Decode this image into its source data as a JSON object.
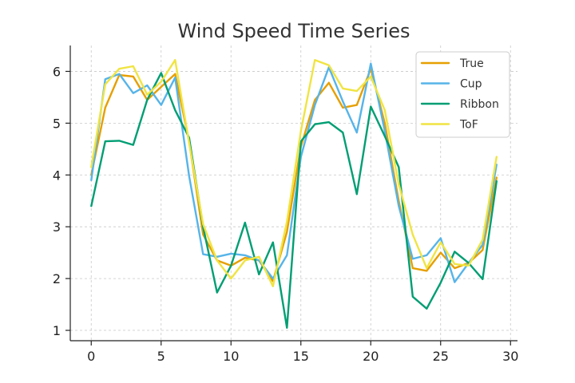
{
  "chart_data": {
    "type": "line",
    "title": "Wind Speed Time Series",
    "xlabel": "",
    "ylabel": "",
    "xlim": [
      -1.5,
      30.5
    ],
    "ylim": [
      0.8,
      6.5
    ],
    "xticks": [
      0,
      5,
      10,
      15,
      20,
      25,
      30
    ],
    "yticks": [
      1,
      2,
      3,
      4,
      5,
      6
    ],
    "grid": true,
    "legend": "top-right",
    "x": [
      0,
      1,
      2,
      3,
      4,
      5,
      6,
      7,
      8,
      9,
      10,
      11,
      12,
      13,
      14,
      15,
      16,
      17,
      18,
      19,
      20,
      21,
      22,
      23,
      24,
      25,
      26,
      27,
      28,
      29
    ],
    "series": [
      {
        "name": "True",
        "color": "#E69F00",
        "values": [
          4.0,
          5.3,
          5.93,
          5.9,
          5.45,
          5.7,
          5.95,
          4.65,
          2.85,
          2.35,
          2.25,
          2.4,
          2.35,
          1.95,
          2.9,
          4.55,
          5.45,
          5.78,
          5.3,
          5.35,
          6.05,
          5.0,
          3.5,
          2.2,
          2.15,
          2.5,
          2.2,
          2.3,
          2.55,
          3.95
        ]
      },
      {
        "name": "Cup",
        "color": "#56B4E9",
        "values": [
          3.9,
          5.85,
          5.95,
          5.58,
          5.73,
          5.35,
          5.88,
          3.98,
          2.47,
          2.42,
          2.48,
          2.45,
          2.35,
          2.0,
          2.45,
          4.35,
          5.35,
          6.08,
          5.42,
          4.82,
          6.15,
          4.85,
          3.4,
          2.38,
          2.45,
          2.78,
          1.93,
          2.3,
          2.65,
          4.2
        ]
      },
      {
        "name": "Ribbon",
        "color": "#009E73",
        "values": [
          3.4,
          4.65,
          4.66,
          4.58,
          5.45,
          5.97,
          5.25,
          4.72,
          3.0,
          1.73,
          2.25,
          3.08,
          2.08,
          2.7,
          1.05,
          4.65,
          4.98,
          5.02,
          4.82,
          3.63,
          5.32,
          4.75,
          4.15,
          1.65,
          1.42,
          1.92,
          2.52,
          2.3,
          1.99,
          3.88
        ]
      },
      {
        "name": "ToF",
        "color": "#F0E442",
        "values": [
          4.15,
          5.75,
          6.05,
          6.1,
          5.55,
          5.8,
          6.22,
          4.62,
          3.05,
          2.35,
          2.0,
          2.35,
          2.42,
          1.85,
          3.1,
          4.85,
          6.22,
          6.12,
          5.67,
          5.62,
          5.9,
          5.25,
          3.82,
          2.85,
          2.2,
          2.7,
          2.28,
          2.25,
          2.75,
          4.35
        ]
      }
    ]
  }
}
